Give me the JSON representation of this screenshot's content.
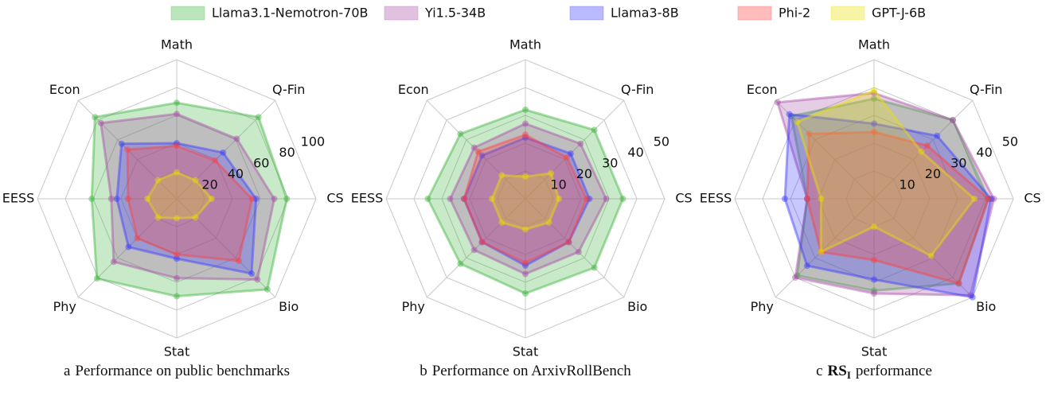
{
  "chart_data": [
    {
      "type": "radar",
      "label": "a",
      "title": "Performance on public benchmarks",
      "categories": [
        "CS",
        "Q-Fin",
        "Math",
        "Econ",
        "EESS",
        "Phy",
        "Stat",
        "Bio"
      ],
      "ylim": [
        0,
        100
      ],
      "yticks": [
        20,
        40,
        60,
        80,
        100
      ],
      "series": [
        {
          "name": "Llama3.1-Nemotron-70B",
          "color": "#3cb43c",
          "values": [
            79,
            83,
            69,
            83,
            61,
            81,
            70,
            92
          ]
        },
        {
          "name": "Yi1.5-34B",
          "color": "#a64ca6",
          "values": [
            70,
            61,
            61,
            77,
            47,
            64,
            57,
            82
          ]
        },
        {
          "name": "Llama3-8B",
          "color": "#3a3aff",
          "values": [
            57,
            47,
            40,
            56,
            43,
            49,
            43,
            76
          ]
        },
        {
          "name": "Phi-2",
          "color": "#ff4040",
          "values": [
            54,
            39,
            38,
            50,
            35,
            40,
            40,
            63
          ]
        },
        {
          "name": "GPT-J-6B",
          "color": "#ece000",
          "values": [
            25,
            19,
            19,
            19,
            21,
            19,
            14,
            19
          ]
        }
      ]
    },
    {
      "type": "radar",
      "label": "b",
      "title": "Performance on ArxivRollBench",
      "categories": [
        "CS",
        "Q-Fin",
        "Math",
        "Econ",
        "EESS",
        "Phy",
        "Stat",
        "Bio"
      ],
      "ylim": [
        0,
        50
      ],
      "yticks": [
        10,
        20,
        30,
        40,
        50
      ],
      "series": [
        {
          "name": "Llama3.1-Nemotron-70B",
          "color": "#3cb43c",
          "values": [
            35,
            35,
            32,
            33,
            35,
            33,
            34,
            35
          ]
        },
        {
          "name": "Yi1.5-34B",
          "color": "#a64ca6",
          "values": [
            29,
            28,
            27,
            26,
            27,
            26,
            27,
            27
          ]
        },
        {
          "name": "Llama3-8B",
          "color": "#3a3aff",
          "values": [
            23,
            23,
            22,
            22,
            22,
            22,
            24,
            22
          ]
        },
        {
          "name": "Phi-2",
          "color": "#ff4040",
          "values": [
            22,
            21,
            23,
            24,
            22,
            22,
            23,
            22
          ]
        },
        {
          "name": "GPT-J-6B",
          "color": "#ece000",
          "values": [
            12,
            13,
            8,
            12,
            12,
            12,
            11,
            12
          ]
        }
      ]
    },
    {
      "type": "radar",
      "label": "c",
      "title_math": "RS",
      "title_sub": "I",
      "title": "performance",
      "categories": [
        "CS",
        "Q-Fin",
        "Math",
        "Econ",
        "EESS",
        "Phy",
        "Stat",
        "Bio"
      ],
      "ylim": [
        0,
        50
      ],
      "yticks": [
        10,
        20,
        30,
        40,
        50
      ],
      "series": [
        {
          "name": "Llama3.1-Nemotron-70B",
          "color": "#3cb43c",
          "values": [
            41,
            40,
            36,
            42,
            24,
            39,
            33,
            43
          ]
        },
        {
          "name": "Yi1.5-34B",
          "color": "#a64ca6",
          "values": [
            43,
            40,
            38,
            49,
            24,
            40,
            34,
            49
          ]
        },
        {
          "name": "Llama3-8B",
          "color": "#3a3aff",
          "values": [
            42,
            32,
            27,
            43,
            32,
            34,
            29,
            50
          ]
        },
        {
          "name": "Phi-2",
          "color": "#ff4040",
          "values": [
            41,
            27,
            24,
            33,
            24,
            27,
            22,
            43
          ]
        },
        {
          "name": "GPT-J-6B",
          "color": "#ece000",
          "values": [
            36,
            24,
            39,
            39,
            19,
            27,
            10,
            29
          ]
        }
      ]
    }
  ]
}
